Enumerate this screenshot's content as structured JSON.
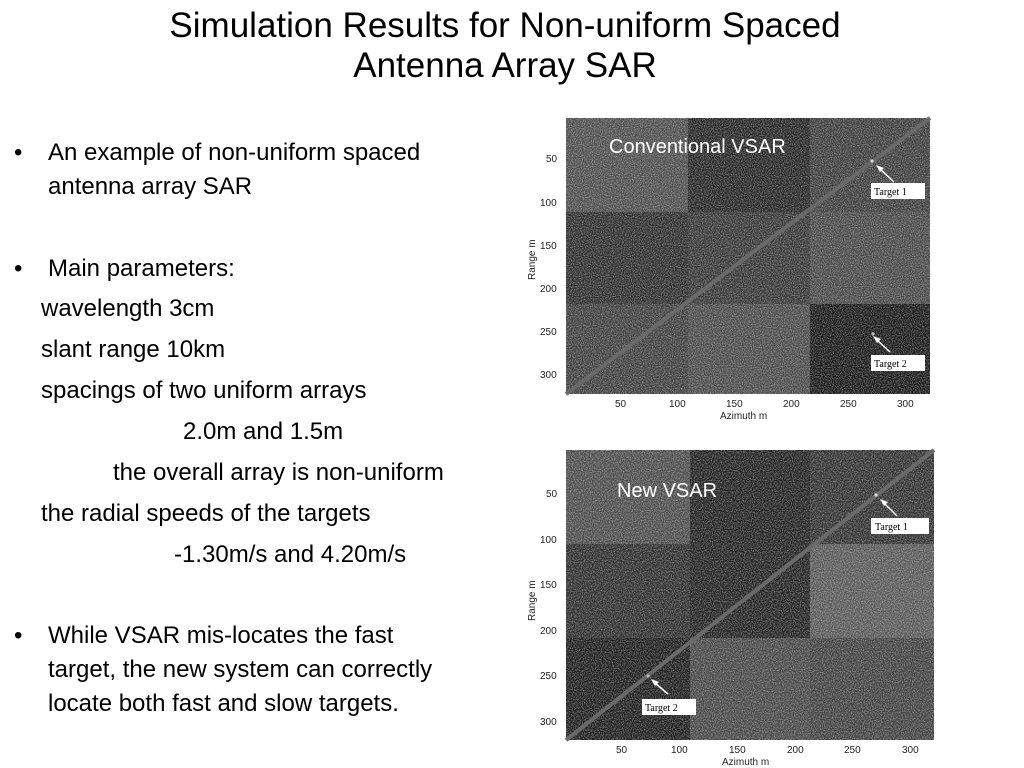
{
  "title": {
    "line1": "Simulation Results for Non-uniform Spaced",
    "line2": "Antenna Array SAR"
  },
  "bullets": {
    "example": [
      "An example of non-uniform spaced",
      "antenna array SAR"
    ],
    "main_params": "Main parameters:",
    "params": [
      "wavelength  3cm",
      "slant range  10km",
      "spacings of two uniform arrays",
      "2.0m and 1.5m",
      "the overall array is non-uniform",
      "the radial speeds of the targets",
      "-1.30m/s and 4.20m/s"
    ],
    "conclusion": [
      "While VSAR mis-locates the fast",
      "target, the new system can correctly",
      "locate both fast and slow targets."
    ]
  },
  "figures": [
    {
      "label": "Conventional VSAR",
      "xlabel": "Azimuth m",
      "ylabel": "Range m",
      "xticks": [
        "50",
        "100",
        "150",
        "200",
        "250",
        "300"
      ],
      "yticks": [
        "50",
        "100",
        "150",
        "200",
        "250",
        "300"
      ],
      "targets": [
        "Target 1",
        "Target 2"
      ]
    },
    {
      "label": "New VSAR",
      "xlabel": "Azimuth m",
      "ylabel": "Range m",
      "xticks": [
        "50",
        "100",
        "150",
        "200",
        "250",
        "300"
      ],
      "yticks": [
        "50",
        "100",
        "150",
        "200",
        "250",
        "300"
      ],
      "targets": [
        "Target 1",
        "Target 2"
      ]
    }
  ]
}
